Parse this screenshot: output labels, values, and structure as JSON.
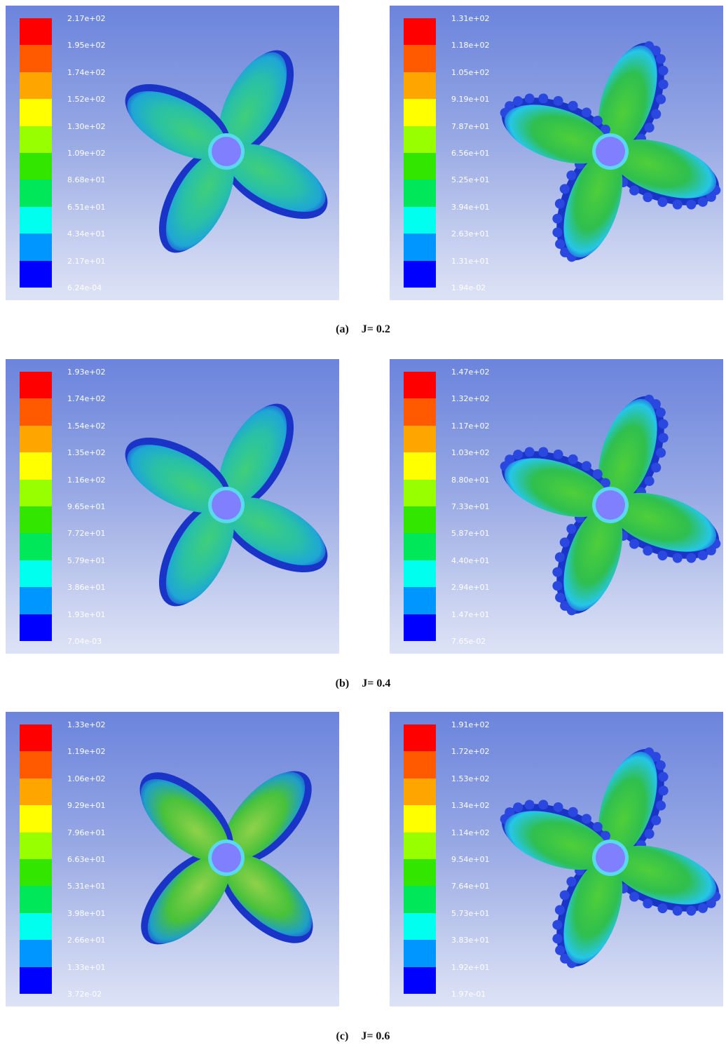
{
  "rows": [
    {
      "caption_label": "(a)",
      "caption_value": "J= 0.2",
      "panels": [
        {
          "variant": "smooth",
          "labels": [
            "2.17e+02",
            "1.95e+02",
            "1.74e+02",
            "1.52e+02",
            "1.30e+02",
            "1.09e+02",
            "8.68e+01",
            "6.51e+01",
            "4.34e+01",
            "2.17e+01",
            "6.24e-04"
          ]
        },
        {
          "variant": "serrated",
          "labels": [
            "1.31e+02",
            "1.18e+02",
            "1.05e+02",
            "9.19e+01",
            "7.87e+01",
            "6.56e+01",
            "5.25e+01",
            "3.94e+01",
            "2.63e+01",
            "1.31e+01",
            "1.94e-02"
          ]
        }
      ]
    },
    {
      "caption_label": "(b)",
      "caption_value": "J= 0.4",
      "panels": [
        {
          "variant": "smooth",
          "labels": [
            "1.93e+02",
            "1.74e+02",
            "1.54e+02",
            "1.35e+02",
            "1.16e+02",
            "9.65e+01",
            "7.72e+01",
            "5.79e+01",
            "3.86e+01",
            "1.93e+01",
            "7.04e-03"
          ]
        },
        {
          "variant": "serrated",
          "labels": [
            "1.47e+02",
            "1.32e+02",
            "1.17e+02",
            "1.03e+02",
            "8.80e+01",
            "7.33e+01",
            "5.87e+01",
            "4.40e+01",
            "2.94e+01",
            "1.47e+01",
            "7.65e-02"
          ]
        }
      ]
    },
    {
      "caption_label": "(c)",
      "caption_value": "J= 0.6",
      "panels": [
        {
          "variant": "smooth-hot",
          "labels": [
            "1.33e+02",
            "1.19e+02",
            "1.06e+02",
            "9.29e+01",
            "7.96e+01",
            "6.63e+01",
            "5.31e+01",
            "3.98e+01",
            "2.66e+01",
            "1.33e+01",
            "3.72e-02"
          ]
        },
        {
          "variant": "serrated",
          "labels": [
            "1.91e+02",
            "1.72e+02",
            "1.53e+02",
            "1.34e+02",
            "1.14e+02",
            "9.54e+01",
            "7.64e+01",
            "5.73e+01",
            "3.83e+01",
            "1.92e+01",
            "1.97e-01"
          ]
        }
      ]
    }
  ],
  "colormap": [
    "#ff0000",
    "#ff5a00",
    "#ffa500",
    "#ffff00",
    "#98ff00",
    "#32e600",
    "#00e85a",
    "#00ffee",
    "#0096ff",
    "#0000ff"
  ],
  "hub_color": "#8080ff"
}
